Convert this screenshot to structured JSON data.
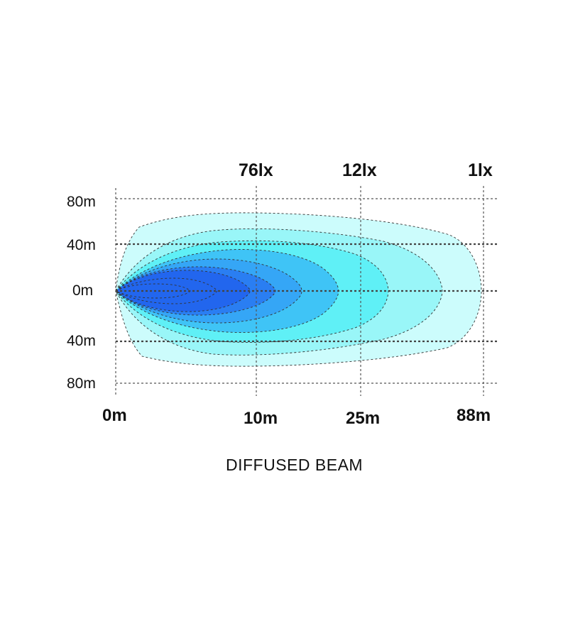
{
  "chart_data": {
    "type": "heatmap",
    "title": "DIFFUSED BEAM",
    "lux_labels": [
      {
        "text": "76lx",
        "distance_m": 10
      },
      {
        "text": "12lx",
        "distance_m": 25
      },
      {
        "text": "1lx",
        "distance_m": 88
      }
    ],
    "x_ticks": [
      "0m",
      "10m",
      "25m",
      "88m"
    ],
    "y_ticks": [
      "80m",
      "40m",
      "0m",
      "40m",
      "80m"
    ],
    "grid": true,
    "colors": {
      "zone_1": "#ccfcfc",
      "zone_2": "#99f6f8",
      "zone_3": "#5ff0f6",
      "zone_4": "#3fc4f6",
      "zone_5": "#35a6f6",
      "zone_6": "#2a7ef2",
      "zone_7": "#2266ee"
    }
  }
}
